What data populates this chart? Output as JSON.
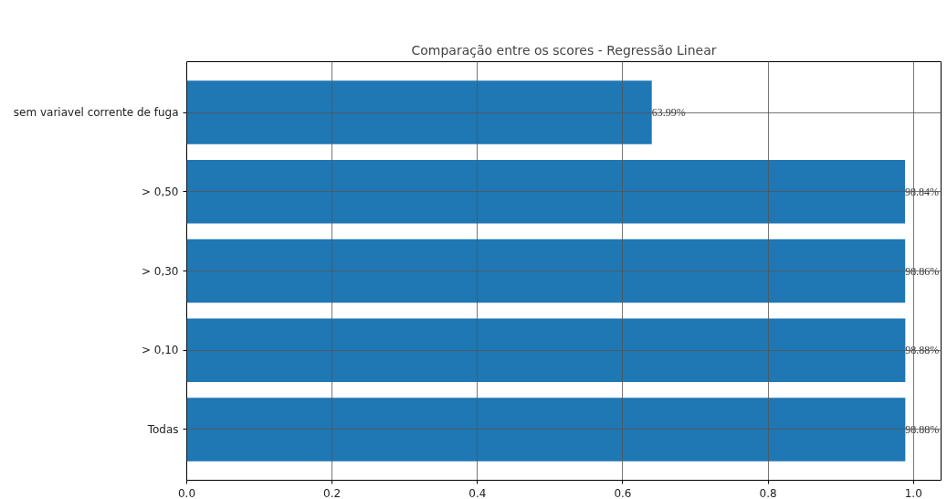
{
  "chart_data": {
    "type": "bar",
    "orientation": "horizontal",
    "title": "Comparação entre os scores - Regressão Linear",
    "categories": [
      "sem variavel corrente de fuga",
      "> 0,50",
      "> 0,30",
      "> 0,10",
      "Todas"
    ],
    "values": [
      0.6399,
      0.9884,
      0.9886,
      0.9888,
      0.9888
    ],
    "value_labels": [
      "63.99%",
      "98.84%",
      "98.86%",
      "98.88%",
      "98.88%"
    ],
    "color": "#1f77b4",
    "xlim": [
      0,
      1.038
    ],
    "xticks": [
      {
        "value": 0,
        "label": "0.0"
      },
      0.2,
      0.4,
      0.6,
      0.8,
      {
        "value": 1,
        "label": "1.0"
      }
    ],
    "grid": true
  }
}
